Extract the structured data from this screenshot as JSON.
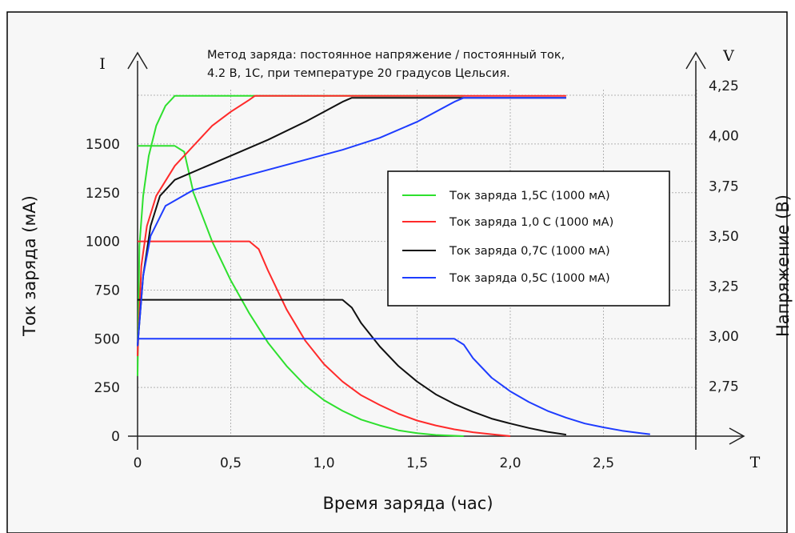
{
  "chart_data": {
    "type": "line",
    "annotation": [
      "Метод заряда: постоянное напряжение / постоянный ток,",
      "4.2 В, 1С, при температуре 20 градусов Цельсия."
    ],
    "xlabel": "Время заряда (час)",
    "ylabel_left": "Ток заряда (мА)",
    "ylabel_right": "Напряжение (В)",
    "x_axis_symbol": "T",
    "y_left_symbol": "I",
    "y_right_symbol": "V",
    "xlim": [
      0,
      3
    ],
    "ylim_left": [
      0,
      1750
    ],
    "ylim_right": [
      2.5,
      4.25
    ],
    "x_ticks": [
      "0",
      "0,5",
      "1,0",
      "1,5",
      "2,0",
      "2,5"
    ],
    "y_left_ticks": [
      "0",
      "250",
      "500",
      "750",
      "1000",
      "1250",
      "1500"
    ],
    "y_right_ticks": [
      "2,75",
      "3,00",
      "3,25",
      "3,50",
      "3,75",
      "4,00",
      "4,25"
    ],
    "grid": true,
    "legend_position": "right",
    "series": [
      {
        "name": "Ток заряда  1,5С (1000 мА)",
        "color": "#2ee02e",
        "current": [
          [
            0,
            1490
          ],
          [
            0.2,
            1490
          ],
          [
            0.25,
            1460
          ],
          [
            0.3,
            1250
          ],
          [
            0.4,
            1000
          ],
          [
            0.5,
            800
          ],
          [
            0.6,
            630
          ],
          [
            0.7,
            480
          ],
          [
            0.8,
            360
          ],
          [
            0.9,
            260
          ],
          [
            1.0,
            185
          ],
          [
            1.1,
            130
          ],
          [
            1.2,
            85
          ],
          [
            1.3,
            55
          ],
          [
            1.4,
            30
          ],
          [
            1.5,
            15
          ],
          [
            1.6,
            6
          ],
          [
            1.75,
            0
          ]
        ],
        "voltage": [
          [
            0,
            2.8
          ],
          [
            0.01,
            3.45
          ],
          [
            0.03,
            3.7
          ],
          [
            0.06,
            3.9
          ],
          [
            0.1,
            4.05
          ],
          [
            0.15,
            4.15
          ],
          [
            0.2,
            4.2
          ],
          [
            1.75,
            4.2
          ]
        ]
      },
      {
        "name": "Ток заряда  1,0 С (1000 мА)",
        "color": "#ff2a2a",
        "current": [
          [
            0,
            1000
          ],
          [
            0.6,
            1000
          ],
          [
            0.65,
            960
          ],
          [
            0.7,
            850
          ],
          [
            0.8,
            650
          ],
          [
            0.9,
            490
          ],
          [
            1.0,
            370
          ],
          [
            1.1,
            280
          ],
          [
            1.2,
            210
          ],
          [
            1.3,
            160
          ],
          [
            1.4,
            115
          ],
          [
            1.5,
            80
          ],
          [
            1.6,
            55
          ],
          [
            1.7,
            35
          ],
          [
            1.8,
            20
          ],
          [
            1.9,
            10
          ],
          [
            2.0,
            0
          ]
        ],
        "voltage": [
          [
            0,
            2.9
          ],
          [
            0.02,
            3.35
          ],
          [
            0.05,
            3.55
          ],
          [
            0.1,
            3.7
          ],
          [
            0.2,
            3.85
          ],
          [
            0.3,
            3.95
          ],
          [
            0.4,
            4.05
          ],
          [
            0.5,
            4.12
          ],
          [
            0.6,
            4.18
          ],
          [
            0.63,
            4.2
          ],
          [
            2.3,
            4.2
          ]
        ]
      },
      {
        "name": "Ток заряда  0,7С (1000 мА)",
        "color": "#111111",
        "current": [
          [
            0,
            700
          ],
          [
            1.1,
            700
          ],
          [
            1.15,
            660
          ],
          [
            1.2,
            580
          ],
          [
            1.3,
            460
          ],
          [
            1.4,
            360
          ],
          [
            1.5,
            280
          ],
          [
            1.6,
            215
          ],
          [
            1.7,
            165
          ],
          [
            1.8,
            125
          ],
          [
            1.9,
            90
          ],
          [
            2.0,
            65
          ],
          [
            2.1,
            42
          ],
          [
            2.2,
            22
          ],
          [
            2.3,
            8
          ]
        ],
        "voltage": [
          [
            0,
            2.95
          ],
          [
            0.03,
            3.3
          ],
          [
            0.07,
            3.55
          ],
          [
            0.12,
            3.7
          ],
          [
            0.2,
            3.78
          ],
          [
            0.3,
            3.82
          ],
          [
            0.5,
            3.9
          ],
          [
            0.7,
            3.98
          ],
          [
            0.9,
            4.07
          ],
          [
            1.1,
            4.17
          ],
          [
            1.15,
            4.19
          ],
          [
            2.3,
            4.19
          ]
        ]
      },
      {
        "name": "Ток заряда  0,5С (1000 мА)",
        "color": "#1e3cff",
        "current": [
          [
            0,
            500
          ],
          [
            1.7,
            500
          ],
          [
            1.75,
            470
          ],
          [
            1.8,
            400
          ],
          [
            1.9,
            300
          ],
          [
            2.0,
            230
          ],
          [
            2.1,
            175
          ],
          [
            2.2,
            130
          ],
          [
            2.3,
            95
          ],
          [
            2.4,
            65
          ],
          [
            2.5,
            45
          ],
          [
            2.6,
            28
          ],
          [
            2.7,
            15
          ],
          [
            2.75,
            10
          ]
        ],
        "voltage": [
          [
            0,
            2.95
          ],
          [
            0.03,
            3.3
          ],
          [
            0.07,
            3.5
          ],
          [
            0.15,
            3.65
          ],
          [
            0.3,
            3.73
          ],
          [
            0.5,
            3.78
          ],
          [
            0.7,
            3.83
          ],
          [
            0.9,
            3.88
          ],
          [
            1.1,
            3.93
          ],
          [
            1.3,
            3.99
          ],
          [
            1.5,
            4.07
          ],
          [
            1.7,
            4.17
          ],
          [
            1.75,
            4.19
          ],
          [
            2.3,
            4.19
          ]
        ]
      }
    ]
  }
}
